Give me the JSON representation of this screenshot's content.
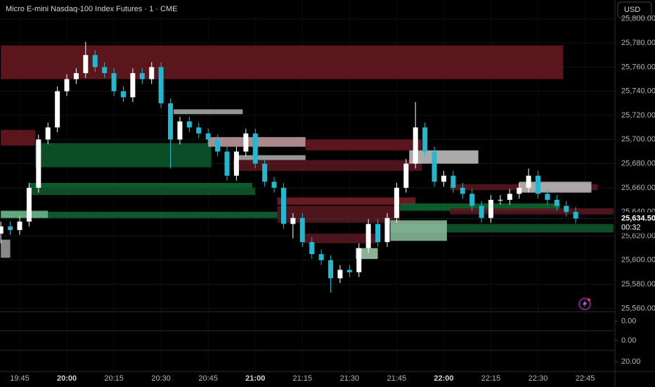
{
  "chart_data": {
    "type": "candlestick",
    "title": "Micro E-mini Nasdaq-100 Index Futures · 1 · CME",
    "currency": "USD",
    "x": [
      "19:39",
      "19:42",
      "19:45",
      "19:48",
      "19:51",
      "19:54",
      "19:57",
      "20:00",
      "20:03",
      "20:06",
      "20:09",
      "20:12",
      "20:15",
      "20:18",
      "20:21",
      "20:24",
      "20:27",
      "20:30",
      "20:33",
      "20:36",
      "20:39",
      "20:42",
      "20:45",
      "20:48",
      "20:51",
      "20:54",
      "20:57",
      "21:00",
      "21:03",
      "21:06",
      "21:09",
      "21:12",
      "21:15",
      "21:18",
      "21:21",
      "21:24",
      "21:27",
      "21:30",
      "21:33",
      "21:36",
      "21:39",
      "21:42",
      "21:45",
      "21:48",
      "21:51",
      "21:54",
      "21:57",
      "22:00",
      "22:03",
      "22:06",
      "22:09",
      "22:12",
      "22:15",
      "22:18",
      "22:21",
      "22:24",
      "22:27",
      "22:30",
      "22:33",
      "22:36",
      "22:39",
      "22:42"
    ],
    "open": [
      25622,
      25628,
      25625,
      25632,
      25660,
      25700,
      25710,
      25740,
      25750,
      25755,
      25770,
      25760,
      25755,
      25740,
      25735,
      25755,
      25750,
      25760,
      25730,
      25700,
      25715,
      25710,
      25705,
      25700,
      25690,
      25670,
      25690,
      25705,
      25680,
      25665,
      25660,
      25630,
      25635,
      25615,
      25605,
      25600,
      25585,
      25592,
      25590,
      25610,
      25630,
      25615,
      25635,
      25660,
      25680,
      25710,
      25690,
      25665,
      25670,
      25660,
      25655,
      25645,
      25635,
      25650,
      25650,
      25655,
      25660,
      25670,
      25655,
      25650,
      25645,
      25640
    ],
    "high": [
      25632,
      25632,
      25636,
      25664,
      25704,
      25714,
      25744,
      25754,
      25759,
      25781,
      25774,
      25764,
      25759,
      25744,
      25759,
      25759,
      25764,
      25764,
      25734,
      25719,
      25719,
      25714,
      25709,
      25704,
      25694,
      25694,
      25709,
      25709,
      25684,
      25669,
      25664,
      25639,
      25639,
      25619,
      25609,
      25604,
      25596,
      25596,
      25614,
      25634,
      25634,
      25639,
      25664,
      25684,
      25731,
      25714,
      25694,
      25674,
      25674,
      25664,
      25659,
      25649,
      25654,
      25654,
      25659,
      25664,
      25676,
      25674,
      25659,
      25654,
      25649,
      25644
    ],
    "low": [
      25614,
      25621,
      25621,
      25628,
      25656,
      25696,
      25706,
      25736,
      25746,
      25751,
      25756,
      25751,
      25736,
      25731,
      25731,
      25746,
      25746,
      25726,
      25676,
      25696,
      25706,
      25701,
      25696,
      25686,
      25666,
      25666,
      25686,
      25676,
      25661,
      25656,
      25626,
      25618,
      25611,
      25601,
      25596,
      25573,
      25581,
      25586,
      25586,
      25606,
      25611,
      25611,
      25631,
      25656,
      25676,
      25686,
      25661,
      25661,
      25656,
      25651,
      25641,
      25631,
      25631,
      25646,
      25646,
      25651,
      25656,
      25651,
      25646,
      25641,
      25636,
      25630.5
    ],
    "close": [
      25628,
      25625,
      25632,
      25660,
      25700,
      25710,
      25740,
      25750,
      25755,
      25770,
      25760,
      25755,
      25740,
      25735,
      25755,
      25750,
      25760,
      25730,
      25700,
      25715,
      25710,
      25705,
      25700,
      25690,
      25670,
      25690,
      25705,
      25680,
      25665,
      25660,
      25630,
      25635,
      25615,
      25605,
      25600,
      25585,
      25592,
      25590,
      25610,
      25630,
      25615,
      25635,
      25660,
      25680,
      25710,
      25690,
      25665,
      25670,
      25660,
      25655,
      25645,
      25635,
      25650,
      25650,
      25655,
      25660,
      25670,
      25655,
      25650,
      25645,
      25640,
      25634.5
    ],
    "up_color": "#ffffff",
    "down_color": "#22b8cf",
    "last_price": {
      "value": 25634.5,
      "label": "25,634.50"
    },
    "countdown": "00:32",
    "zones": [
      {
        "x": [
          "19:39",
          "22:38"
        ],
        "y": [
          25750,
          25778
        ],
        "color": "#6b1a22"
      },
      {
        "x": [
          "19:39",
          "19:50"
        ],
        "y": [
          25695,
          25708
        ],
        "color": "#6b1a22"
      },
      {
        "x": [
          "19:50",
          "20:46"
        ],
        "y": [
          25677,
          25697
        ],
        "color": "#0d5a2e"
      },
      {
        "x": [
          "19:48",
          "20:59"
        ],
        "y": [
          25660,
          25664
        ],
        "color": "#0f6a34"
      },
      {
        "x": [
          "19:48",
          "21:00"
        ],
        "y": [
          25654,
          25660
        ],
        "color": "#0f5a2f"
      },
      {
        "x": [
          "19:39",
          "21:07"
        ],
        "y": [
          25635,
          25640
        ],
        "color": "#0f6a34"
      },
      {
        "x": [
          "19:39",
          "19:54"
        ],
        "y": [
          25635,
          25641
        ],
        "color": "#6fb98a"
      },
      {
        "x": [
          "21:07",
          "21:51"
        ],
        "y": [
          25646,
          25652
        ],
        "color": "#7a1f2a"
      },
      {
        "x": [
          "20:45",
          "21:16"
        ],
        "y": [
          25694,
          25702
        ],
        "color": "#c9a0a5"
      },
      {
        "x": [
          "21:16",
          "21:53"
        ],
        "y": [
          25691,
          25700
        ],
        "color": "#6b1a22"
      },
      {
        "x": [
          "20:53",
          "21:53"
        ],
        "y": [
          25674,
          25683
        ],
        "color": "#5a1820"
      },
      {
        "x": [
          "21:07",
          "21:46"
        ],
        "y": [
          25631,
          25645
        ],
        "color": "#5a1820"
      },
      {
        "x": [
          "21:15",
          "21:39"
        ],
        "y": [
          25614,
          25622
        ],
        "color": "#5a1820"
      },
      {
        "x": [
          "21:43",
          "22:54"
        ],
        "y": [
          25623,
          25630
        ],
        "color": "#0f5a2f"
      },
      {
        "x": [
          "21:46",
          "22:37"
        ],
        "y": [
          25641,
          25647
        ],
        "color": "#0f6a34"
      },
      {
        "x": [
          "22:02",
          "22:54"
        ],
        "y": [
          25638,
          25643
        ],
        "color": "#5a1820"
      },
      {
        "x": [
          "22:02",
          "22:49"
        ],
        "y": [
          25658,
          25663
        ],
        "color": "#5a1820"
      },
      {
        "x": [
          "20:34",
          "20:56"
        ],
        "y": [
          25721,
          25725
        ],
        "color": "#b0b0b0"
      },
      {
        "x": [
          "20:54",
          "21:16"
        ],
        "y": [
          25683,
          25687
        ],
        "color": "#b0b0b0"
      },
      {
        "x": [
          "21:49",
          "22:11"
        ],
        "y": [
          25680,
          25691
        ],
        "color": "#c8c8c8"
      },
      {
        "x": [
          "22:24",
          "22:47"
        ],
        "y": [
          25656,
          25665
        ],
        "color": "#c0c0c0"
      },
      {
        "x": [
          "21:43",
          "22:01"
        ],
        "y": [
          25616,
          25633
        ],
        "color": "#8fbfa0"
      },
      {
        "x": [
          "21:32",
          "21:39"
        ],
        "y": [
          25601,
          25610
        ],
        "color": "#a8d0b0"
      },
      {
        "x": [
          "19:39",
          "19:42"
        ],
        "y": [
          25602,
          25617
        ],
        "color": "#a0a0a0"
      }
    ],
    "ylim": [
      25557.3,
      25815.6
    ],
    "yticks": [
      {
        "value": 25560,
        "label": "25,560.00"
      },
      {
        "value": 25580,
        "label": "25,580.00"
      },
      {
        "value": 25600,
        "label": "25,600.00"
      },
      {
        "value": 25620,
        "label": "25,620.00"
      },
      {
        "value": 25640,
        "label": "25,640.00"
      },
      {
        "value": 25660,
        "label": "25,660.00"
      },
      {
        "value": 25680,
        "label": "25,680.00"
      },
      {
        "value": 25700,
        "label": "25,700.00"
      },
      {
        "value": 25720,
        "label": "25,720.00"
      },
      {
        "value": 25740,
        "label": "25,740.00"
      },
      {
        "value": 25760,
        "label": "25,760.00"
      },
      {
        "value": 25780,
        "label": "25,780.00"
      },
      {
        "value": 25800,
        "label": "25,800.00"
      }
    ],
    "xticks": [
      "19:45",
      "20:00",
      "20:15",
      "20:30",
      "20:45",
      "21:00",
      "21:15",
      "21:30",
      "21:45",
      "22:00",
      "22:15",
      "22:30",
      "22:45"
    ],
    "panes": [
      {
        "ylim": [
          -1,
          1
        ],
        "yticks": [
          {
            "value": 0,
            "label": "0.00"
          }
        ]
      },
      {
        "ylim": [
          -1,
          1
        ],
        "yticks": [
          {
            "value": 0,
            "label": "0.00"
          }
        ]
      },
      {
        "ylim": [
          0,
          43
        ],
        "yticks": [
          {
            "value": 20,
            "label": "20.00"
          }
        ]
      }
    ],
    "grid": true
  }
}
